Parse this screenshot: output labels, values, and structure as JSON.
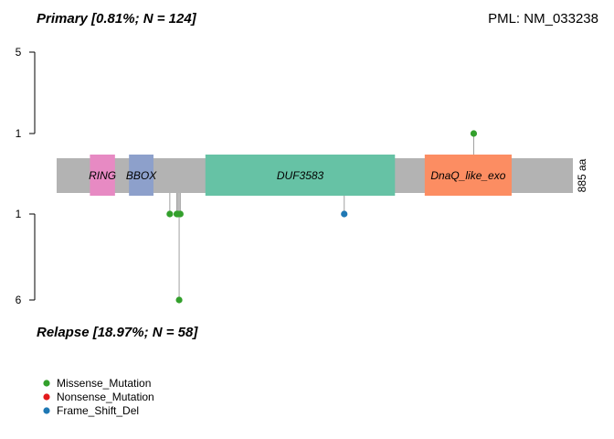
{
  "chart_data": {
    "type": "lollipop",
    "gene_label": "PML: NM_033238",
    "protein_length_label": "885 aa",
    "protein_length": 885,
    "top": {
      "title": "Primary [0.81%; N = 124]",
      "ticks": [
        "5",
        "1"
      ],
      "max_count": 5
    },
    "bottom": {
      "title": "Relapse [18.97%; N = 58]",
      "ticks": [
        "1",
        "6"
      ],
      "max_count": 6
    },
    "domains": [
      {
        "name": "RING",
        "start": 57,
        "end": 100,
        "color": "#E78AC3"
      },
      {
        "name": "BBOX",
        "start": 124,
        "end": 166,
        "color": "#8DA0CB"
      },
      {
        "name": "DUF3583",
        "start": 255,
        "end": 580,
        "color": "#66C2A5"
      },
      {
        "name": "DnaQ_like_exo",
        "start": 631,
        "end": 780,
        "color": "#FC8D62"
      }
    ],
    "mutation_colors": {
      "Missense_Mutation": "#33A02C",
      "Nonsense_Mutation": "#E31A1C",
      "Frame_Shift_Del": "#1F78B4"
    },
    "top_mutations": [
      {
        "pos": 715,
        "count": 1,
        "type": "Missense_Mutation"
      }
    ],
    "bottom_mutations": [
      {
        "pos": 194,
        "count": 1,
        "type": "Missense_Mutation"
      },
      {
        "pos": 206,
        "count": 1,
        "type": "Missense_Mutation"
      },
      {
        "pos": 208,
        "count": 1,
        "type": "Missense_Mutation"
      },
      {
        "pos": 210,
        "count": 6,
        "type": "Missense_Mutation"
      },
      {
        "pos": 212,
        "count": 1,
        "type": "Missense_Mutation"
      },
      {
        "pos": 493,
        "count": 1,
        "type": "Frame_Shift_Del"
      }
    ],
    "legend": [
      {
        "label": "Missense_Mutation",
        "type": "Missense_Mutation"
      },
      {
        "label": "Nonsense_Mutation",
        "type": "Nonsense_Mutation"
      },
      {
        "label": "Frame_Shift_Del",
        "type": "Frame_Shift_Del"
      }
    ]
  }
}
